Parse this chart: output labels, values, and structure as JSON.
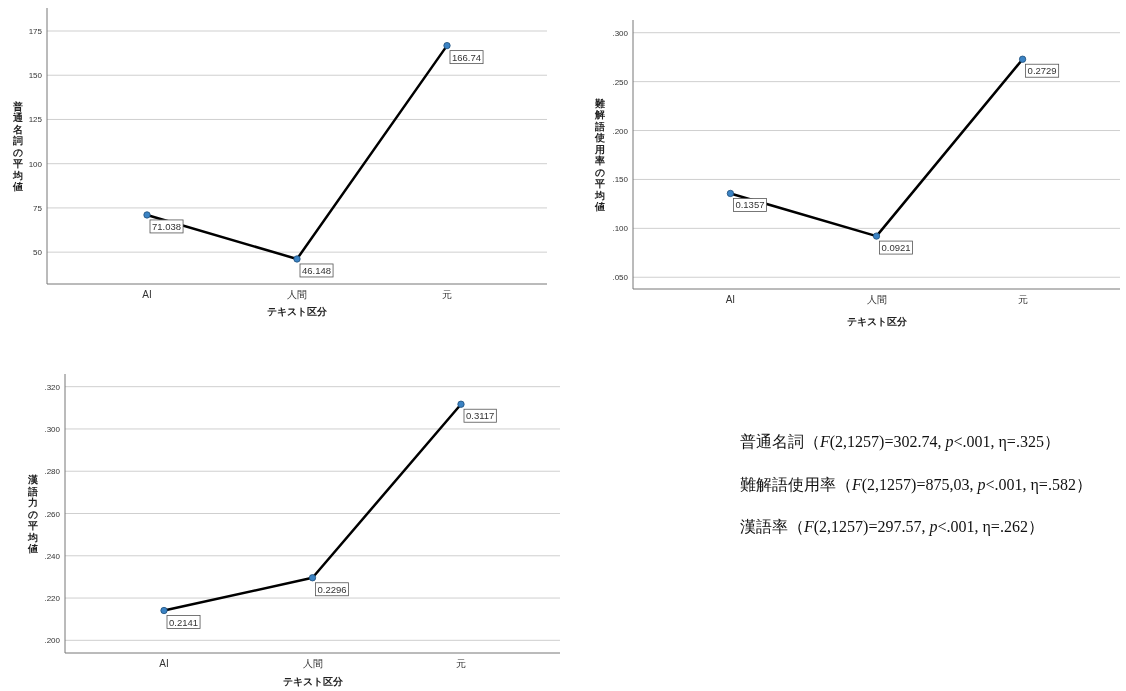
{
  "chart_data": [
    {
      "type": "line",
      "xlabel": "テキスト区分",
      "ylabel": "普通名詞の平均値",
      "categories": [
        "AI",
        "人間",
        "元"
      ],
      "series": [
        {
          "color": "#000000",
          "values": [
            71.038,
            46.148,
            166.74
          ]
        }
      ],
      "ylim": [
        32,
        188
      ],
      "yticks": [
        50,
        75,
        100,
        125,
        150,
        175
      ],
      "grid": "y",
      "marker": "circle",
      "data_labels": true
    },
    {
      "type": "line",
      "xlabel": "テキスト区分",
      "ylabel": "難解語使用率の平均値",
      "categories": [
        "AI",
        "人間",
        "元"
      ],
      "series": [
        {
          "color": "#000000",
          "values": [
            0.1357,
            0.0921,
            0.2729
          ]
        }
      ],
      "ylim": [
        0.038,
        0.313
      ],
      "yticks": [
        {
          "value": 0.05,
          "label": ".050"
        },
        {
          "value": 0.1,
          "label": ".100"
        },
        {
          "value": 0.15,
          "label": ".150"
        },
        {
          "value": 0.2,
          "label": ".200"
        },
        {
          "value": 0.25,
          "label": ".250"
        },
        {
          "value": 0.3,
          "label": ".300"
        }
      ],
      "grid": "y",
      "marker": "circle",
      "data_labels": true
    },
    {
      "type": "line",
      "xlabel": "テキスト区分",
      "ylabel": "漢語力の平均値",
      "categories": [
        "AI",
        "人間",
        "元"
      ],
      "series": [
        {
          "color": "#000000",
          "values": [
            0.2141,
            0.2296,
            0.3117
          ]
        }
      ],
      "ylim": [
        0.194,
        0.326
      ],
      "yticks": [
        {
          "value": 0.2,
          "label": ".200"
        },
        {
          "value": 0.22,
          "label": ".220"
        },
        {
          "value": 0.24,
          "label": ".240"
        },
        {
          "value": 0.26,
          "label": ".260"
        },
        {
          "value": 0.28,
          "label": ".280"
        },
        {
          "value": 0.3,
          "label": ".300"
        },
        {
          "value": 0.32,
          "label": ".320"
        }
      ],
      "grid": "y",
      "marker": "circle",
      "data_labels": true
    },
    {
      "type": "other",
      "annotations": [
        "普通名詞（*F*(2,1257)=302.74, *p*<.001, η=.325）",
        "難解語使用率（*F*(2,1257)=875,03, *p*<.001, η=.582）",
        "漢語率（*F*(2,1257)=297.57, *p*<.001, η=.262）"
      ]
    }
  ]
}
